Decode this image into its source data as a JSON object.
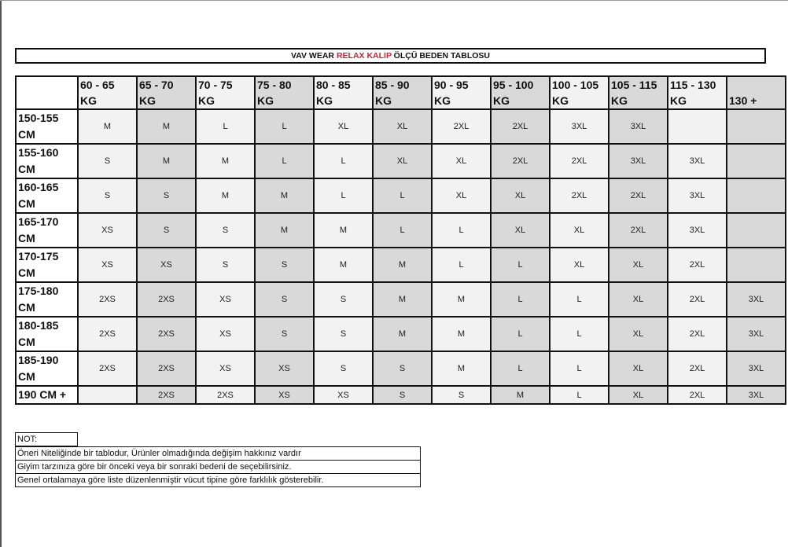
{
  "title": {
    "part1": "VAV WEAR ",
    "highlight": "RELAX KALIP",
    "part2": " ÖLÇÜ BEDEN TABLOSU",
    "highlight_color": "#d0202a"
  },
  "colors": {
    "light_column": "#f2f2f2",
    "dark_column": "#d9d9d9"
  },
  "table": {
    "columns": [
      [
        "60 - 65",
        "KG"
      ],
      [
        "65 - 70",
        "KG"
      ],
      [
        "70 - 75",
        "KG"
      ],
      [
        "75 - 80",
        "KG"
      ],
      [
        "80 - 85",
        "KG"
      ],
      [
        "85 - 90",
        "KG"
      ],
      [
        "90 - 95",
        "KG"
      ],
      [
        "95 - 100",
        "KG"
      ],
      [
        "100 - 105",
        "KG"
      ],
      [
        "105 - 115",
        "KG"
      ],
      [
        "115 - 130",
        "KG"
      ],
      [
        "",
        "130 +"
      ]
    ],
    "rows": [
      {
        "height": [
          "150-155",
          "CM"
        ],
        "sizes": [
          "M",
          "M",
          "L",
          "L",
          "XL",
          "XL",
          "2XL",
          "2XL",
          "3XL",
          "3XL",
          "",
          ""
        ]
      },
      {
        "height": [
          "155-160",
          "CM"
        ],
        "sizes": [
          "S",
          "M",
          "M",
          "L",
          "L",
          "XL",
          "XL",
          "2XL",
          "2XL",
          "3XL",
          "3XL",
          ""
        ]
      },
      {
        "height": [
          "160-165",
          "CM"
        ],
        "sizes": [
          "S",
          "S",
          "M",
          "M",
          "L",
          "L",
          "XL",
          "XL",
          "2XL",
          "2XL",
          "3XL",
          ""
        ]
      },
      {
        "height": [
          "165-170",
          "CM"
        ],
        "sizes": [
          "XS",
          "S",
          "S",
          "M",
          "M",
          "L",
          "L",
          "XL",
          "XL",
          "2XL",
          "3XL",
          ""
        ]
      },
      {
        "height": [
          "170-175",
          "CM"
        ],
        "sizes": [
          "XS",
          "XS",
          "S",
          "S",
          "M",
          "M",
          "L",
          "L",
          "XL",
          "XL",
          "2XL",
          ""
        ]
      },
      {
        "height": [
          "175-180",
          "CM"
        ],
        "sizes": [
          "2XS",
          "2XS",
          "XS",
          "S",
          "S",
          "M",
          "M",
          "L",
          "L",
          "XL",
          "2XL",
          "3XL"
        ]
      },
      {
        "height": [
          "180-185",
          "CM"
        ],
        "sizes": [
          "2XS",
          "2XS",
          "XS",
          "S",
          "S",
          "M",
          "M",
          "L",
          "L",
          "XL",
          "2XL",
          "3XL"
        ]
      },
      {
        "height": [
          "185-190",
          "CM"
        ],
        "sizes": [
          "2XS",
          "2XS",
          "XS",
          "XS",
          "S",
          "S",
          "M",
          "L",
          "L",
          "XL",
          "2XL",
          "3XL"
        ]
      },
      {
        "height": [
          "190 CM +",
          ""
        ],
        "sizes": [
          "",
          "2XS",
          "2XS",
          "XS",
          "XS",
          "S",
          "S",
          "M",
          "L",
          "XL",
          "2XL",
          "3XL"
        ]
      }
    ]
  },
  "notes": {
    "title": "NOT:",
    "lines": [
      "Öneri Niteliğinde bir tablodur, Ürünler olmadığında değişim hakkınız vardır",
      "Giyim tarzınıza göre bir önceki veya bir sonraki bedeni de seçebilirsiniz.",
      "Genel ortalamaya göre liste düzenlenmiştir vücut tipine göre farklılık gösterebilir."
    ]
  }
}
